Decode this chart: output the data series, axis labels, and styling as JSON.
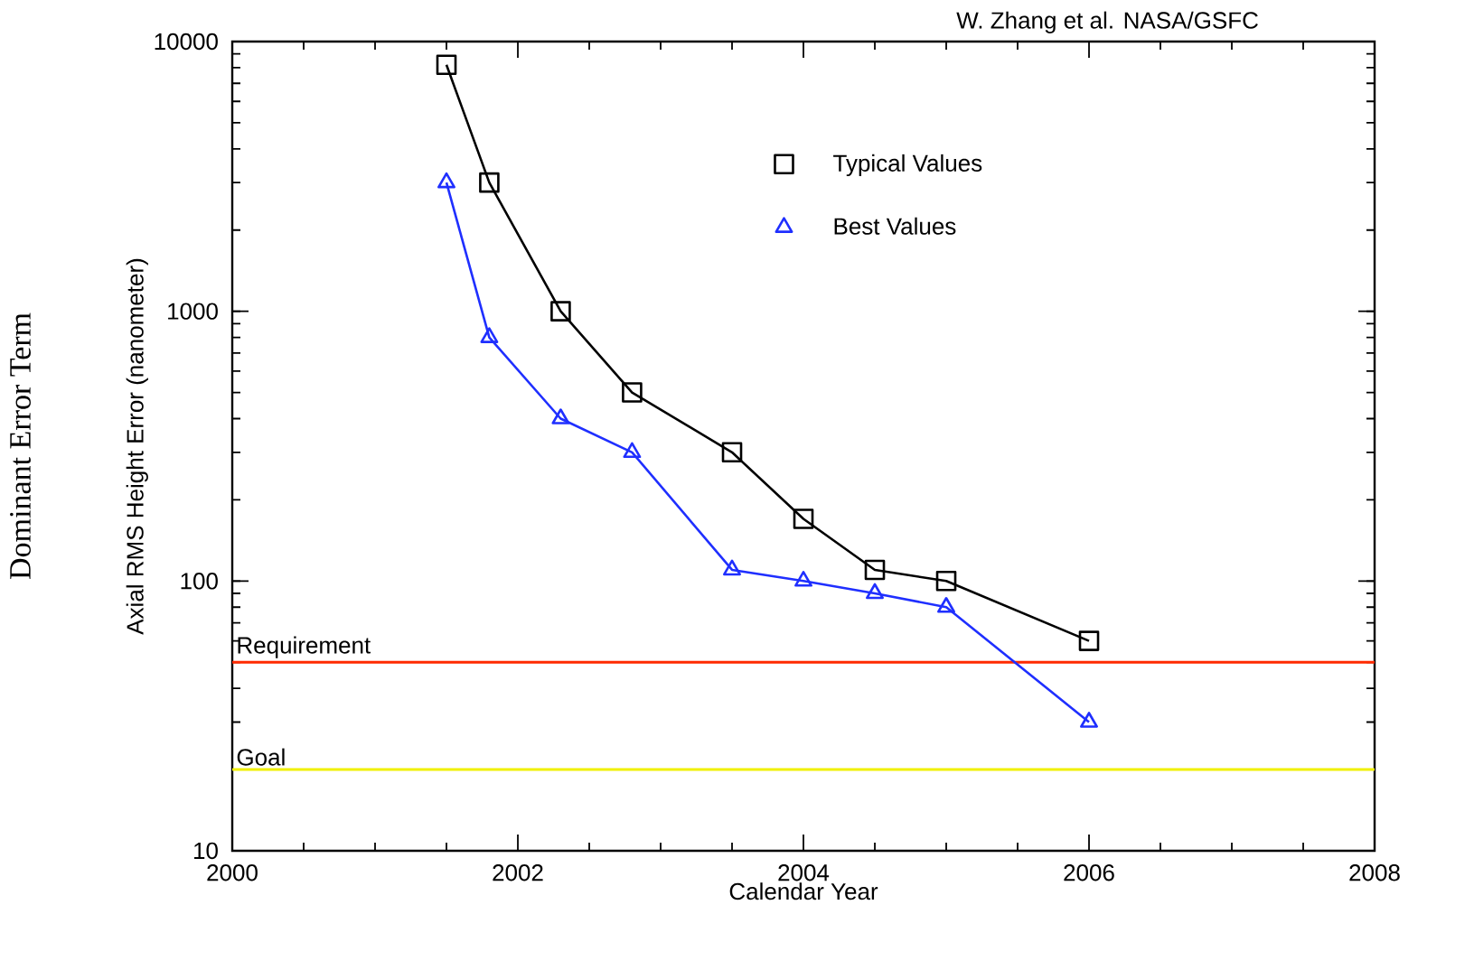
{
  "chart_data": {
    "type": "line",
    "xlabel": "Calendar Year",
    "ylabel": "Axial RMS Height Error (nanometer)",
    "annotations": [
      "W. Zhang et al. NASA/GSFC",
      "Dominant Error Term"
    ],
    "log": "y",
    "grid": false,
    "legend": "top right",
    "xlim": [
      2000,
      2008
    ],
    "xticks": [
      2000,
      2002,
      2004,
      2006,
      2008
    ],
    "ylim": [
      10,
      10000
    ],
    "yticks": [
      10,
      100,
      1000,
      10000
    ],
    "series": [
      {
        "name": "Typical Values",
        "color": "#000000",
        "marker": "square",
        "line_style": "solid",
        "x": [
          2001.5,
          2001.8,
          2002.3,
          2002.8,
          2003.5,
          2004.0,
          2004.5,
          2005.0,
          2006.0
        ],
        "values": [
          8200,
          3000,
          1000,
          500,
          300,
          170,
          110,
          100,
          60
        ]
      },
      {
        "name": "Best Values",
        "color": "#1f2fff",
        "marker": "triangle",
        "line_style": "solid",
        "x": [
          2001.5,
          2001.8,
          2002.3,
          2002.8,
          2003.5,
          2004.0,
          2004.5,
          2005.0,
          2006.0
        ],
        "values": [
          3000,
          800,
          400,
          300,
          110,
          100,
          90,
          80,
          30
        ]
      }
    ],
    "ref_lines": [
      {
        "axis": "y",
        "value": 50,
        "label": "Requirement",
        "color": "#ff2a00"
      },
      {
        "axis": "y",
        "value": 20,
        "label": "Goal",
        "color": "#f0f000"
      }
    ]
  }
}
